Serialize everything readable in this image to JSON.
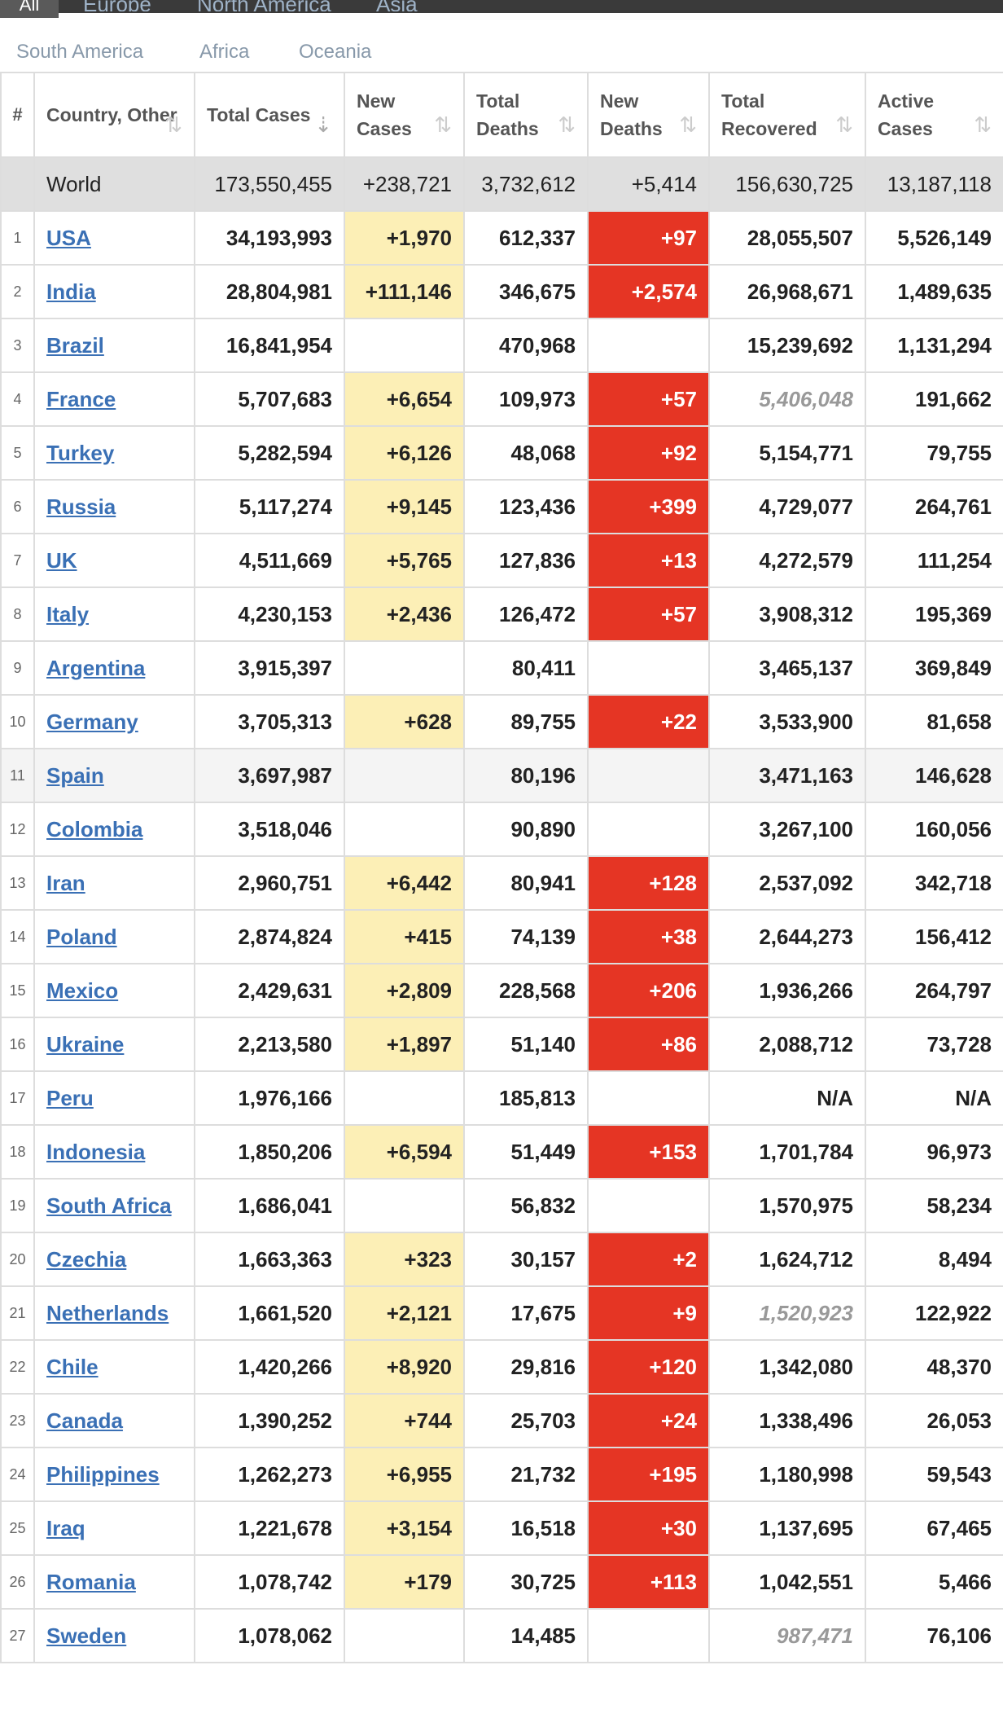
{
  "tabs_top": [
    "All",
    "Europe",
    "North America",
    "Asia"
  ],
  "tabs_second": [
    "South America",
    "Africa",
    "Oceania"
  ],
  "headers": {
    "rank": "#",
    "country": "Country, Other",
    "total_cases": "Total Cases",
    "new_cases": "New Cases",
    "total_deaths": "Total Deaths",
    "new_deaths": "New Deaths",
    "total_recovered": "Total Recovered",
    "active_cases": "Active Cases"
  },
  "colors": {
    "new_cases_highlight": "#fcefb6",
    "new_deaths_highlight": "#e53524",
    "link": "#3a70b5",
    "world_row": "#dfdfdf"
  },
  "world": {
    "country": "World",
    "total_cases": "173,550,455",
    "new_cases": "+238,721",
    "total_deaths": "3,732,612",
    "new_deaths": "+5,414",
    "total_recovered": "156,630,725",
    "active_cases": "13,187,118"
  },
  "rows": [
    {
      "rank": "1",
      "country": "USA",
      "total_cases": "34,193,993",
      "new_cases": "+1,970",
      "total_deaths": "612,337",
      "new_deaths": "+97",
      "total_recovered": "28,055,507",
      "active_cases": "5,526,149"
    },
    {
      "rank": "2",
      "country": "India",
      "total_cases": "28,804,981",
      "new_cases": "+111,146",
      "total_deaths": "346,675",
      "new_deaths": "+2,574",
      "total_recovered": "26,968,671",
      "active_cases": "1,489,635"
    },
    {
      "rank": "3",
      "country": "Brazil",
      "total_cases": "16,841,954",
      "new_cases": "",
      "total_deaths": "470,968",
      "new_deaths": "",
      "total_recovered": "15,239,692",
      "active_cases": "1,131,294"
    },
    {
      "rank": "4",
      "country": "France",
      "total_cases": "5,707,683",
      "new_cases": "+6,654",
      "total_deaths": "109,973",
      "new_deaths": "+57",
      "total_recovered": "5,406,048",
      "recovered_italic": true,
      "active_cases": "191,662"
    },
    {
      "rank": "5",
      "country": "Turkey",
      "total_cases": "5,282,594",
      "new_cases": "+6,126",
      "total_deaths": "48,068",
      "new_deaths": "+92",
      "total_recovered": "5,154,771",
      "active_cases": "79,755"
    },
    {
      "rank": "6",
      "country": "Russia",
      "total_cases": "5,117,274",
      "new_cases": "+9,145",
      "total_deaths": "123,436",
      "new_deaths": "+399",
      "total_recovered": "4,729,077",
      "active_cases": "264,761"
    },
    {
      "rank": "7",
      "country": "UK",
      "total_cases": "4,511,669",
      "new_cases": "+5,765",
      "total_deaths": "127,836",
      "new_deaths": "+13",
      "total_recovered": "4,272,579",
      "active_cases": "111,254"
    },
    {
      "rank": "8",
      "country": "Italy",
      "total_cases": "4,230,153",
      "new_cases": "+2,436",
      "total_deaths": "126,472",
      "new_deaths": "+57",
      "total_recovered": "3,908,312",
      "active_cases": "195,369"
    },
    {
      "rank": "9",
      "country": "Argentina",
      "total_cases": "3,915,397",
      "new_cases": "",
      "total_deaths": "80,411",
      "new_deaths": "",
      "total_recovered": "3,465,137",
      "active_cases": "369,849"
    },
    {
      "rank": "10",
      "country": "Germany",
      "total_cases": "3,705,313",
      "new_cases": "+628",
      "total_deaths": "89,755",
      "new_deaths": "+22",
      "total_recovered": "3,533,900",
      "active_cases": "81,658"
    },
    {
      "rank": "11",
      "country": "Spain",
      "total_cases": "3,697,987",
      "new_cases": "",
      "total_deaths": "80,196",
      "new_deaths": "",
      "total_recovered": "3,471,163",
      "active_cases": "146,628",
      "shaded": true
    },
    {
      "rank": "12",
      "country": "Colombia",
      "total_cases": "3,518,046",
      "new_cases": "",
      "total_deaths": "90,890",
      "new_deaths": "",
      "total_recovered": "3,267,100",
      "active_cases": "160,056"
    },
    {
      "rank": "13",
      "country": "Iran",
      "total_cases": "2,960,751",
      "new_cases": "+6,442",
      "total_deaths": "80,941",
      "new_deaths": "+128",
      "total_recovered": "2,537,092",
      "active_cases": "342,718"
    },
    {
      "rank": "14",
      "country": "Poland",
      "total_cases": "2,874,824",
      "new_cases": "+415",
      "total_deaths": "74,139",
      "new_deaths": "+38",
      "total_recovered": "2,644,273",
      "active_cases": "156,412"
    },
    {
      "rank": "15",
      "country": "Mexico",
      "total_cases": "2,429,631",
      "new_cases": "+2,809",
      "total_deaths": "228,568",
      "new_deaths": "+206",
      "total_recovered": "1,936,266",
      "active_cases": "264,797"
    },
    {
      "rank": "16",
      "country": "Ukraine",
      "total_cases": "2,213,580",
      "new_cases": "+1,897",
      "total_deaths": "51,140",
      "new_deaths": "+86",
      "total_recovered": "2,088,712",
      "active_cases": "73,728"
    },
    {
      "rank": "17",
      "country": "Peru",
      "total_cases": "1,976,166",
      "new_cases": "",
      "total_deaths": "185,813",
      "new_deaths": "",
      "total_recovered": "N/A",
      "active_cases": "N/A"
    },
    {
      "rank": "18",
      "country": "Indonesia",
      "total_cases": "1,850,206",
      "new_cases": "+6,594",
      "total_deaths": "51,449",
      "new_deaths": "+153",
      "total_recovered": "1,701,784",
      "active_cases": "96,973"
    },
    {
      "rank": "19",
      "country": "South Africa",
      "total_cases": "1,686,041",
      "new_cases": "",
      "total_deaths": "56,832",
      "new_deaths": "",
      "total_recovered": "1,570,975",
      "active_cases": "58,234"
    },
    {
      "rank": "20",
      "country": "Czechia",
      "total_cases": "1,663,363",
      "new_cases": "+323",
      "total_deaths": "30,157",
      "new_deaths": "+2",
      "total_recovered": "1,624,712",
      "active_cases": "8,494"
    },
    {
      "rank": "21",
      "country": "Netherlands",
      "total_cases": "1,661,520",
      "new_cases": "+2,121",
      "total_deaths": "17,675",
      "new_deaths": "+9",
      "total_recovered": "1,520,923",
      "recovered_italic": true,
      "active_cases": "122,922"
    },
    {
      "rank": "22",
      "country": "Chile",
      "total_cases": "1,420,266",
      "new_cases": "+8,920",
      "total_deaths": "29,816",
      "new_deaths": "+120",
      "total_recovered": "1,342,080",
      "active_cases": "48,370"
    },
    {
      "rank": "23",
      "country": "Canada",
      "total_cases": "1,390,252",
      "new_cases": "+744",
      "total_deaths": "25,703",
      "new_deaths": "+24",
      "total_recovered": "1,338,496",
      "active_cases": "26,053"
    },
    {
      "rank": "24",
      "country": "Philippines",
      "total_cases": "1,262,273",
      "new_cases": "+6,955",
      "total_deaths": "21,732",
      "new_deaths": "+195",
      "total_recovered": "1,180,998",
      "active_cases": "59,543"
    },
    {
      "rank": "25",
      "country": "Iraq",
      "total_cases": "1,221,678",
      "new_cases": "+3,154",
      "total_deaths": "16,518",
      "new_deaths": "+30",
      "total_recovered": "1,137,695",
      "active_cases": "67,465"
    },
    {
      "rank": "26",
      "country": "Romania",
      "total_cases": "1,078,742",
      "new_cases": "+179",
      "total_deaths": "30,725",
      "new_deaths": "+113",
      "total_recovered": "1,042,551",
      "active_cases": "5,466"
    },
    {
      "rank": "27",
      "country": "Sweden",
      "total_cases": "1,078,062",
      "new_cases": "",
      "total_deaths": "14,485",
      "new_deaths": "",
      "total_recovered": "987,471",
      "recovered_italic": true,
      "active_cases": "76,106"
    }
  ]
}
